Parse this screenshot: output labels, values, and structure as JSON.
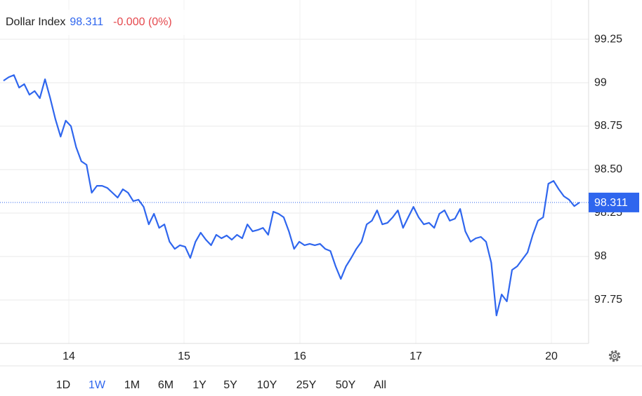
{
  "chart_data": {
    "type": "line",
    "title": "Dollar Index",
    "last": 98.311,
    "change": "-0.000 (0%)",
    "x_labels": [
      "14",
      "15",
      "16",
      "17",
      "20"
    ],
    "series": [
      {
        "name": "Dollar Index",
        "color": "#2f66ee",
        "values": [
          99.012,
          99.032,
          99.044,
          98.972,
          98.992,
          98.931,
          98.952,
          98.911,
          99.02,
          98.911,
          98.79,
          98.69,
          98.782,
          98.75,
          98.629,
          98.548,
          98.528,
          98.367,
          98.407,
          98.407,
          98.395,
          98.367,
          98.339,
          98.387,
          98.367,
          98.319,
          98.327,
          98.286,
          98.185,
          98.246,
          98.165,
          98.185,
          98.085,
          98.044,
          98.065,
          98.056,
          97.992,
          98.085,
          98.137,
          98.097,
          98.065,
          98.125,
          98.105,
          98.121,
          98.097,
          98.125,
          98.105,
          98.185,
          98.145,
          98.153,
          98.165,
          98.125,
          98.258,
          98.246,
          98.226,
          98.145,
          98.044,
          98.085,
          98.065,
          98.073,
          98.065,
          98.073,
          98.044,
          98.032,
          97.944,
          97.871,
          97.944,
          97.992,
          98.044,
          98.085,
          98.185,
          98.206,
          98.266,
          98.185,
          98.194,
          98.226,
          98.266,
          98.165,
          98.226,
          98.286,
          98.226,
          98.185,
          98.194,
          98.165,
          98.246,
          98.266,
          98.206,
          98.218,
          98.274,
          98.145,
          98.085,
          98.105,
          98.113,
          98.085,
          97.964,
          97.661,
          97.782,
          97.742,
          97.923,
          97.944,
          97.984,
          98.024,
          98.125,
          98.206,
          98.226,
          98.419,
          98.435,
          98.387,
          98.347,
          98.327,
          98.29,
          98.311
        ]
      }
    ],
    "ylim": [
      97.5,
      99.476
    ],
    "yticks": [
      97.75,
      98,
      98.25,
      {
        "value": 98.5,
        "label": "98.50"
      },
      98.75,
      99,
      99.25
    ],
    "grid": true,
    "ranges": [
      "1D",
      "1W",
      "1M",
      "6M",
      "1Y",
      "5Y",
      "10Y",
      "25Y",
      "50Y",
      "All"
    ],
    "selected_range": "1W"
  }
}
